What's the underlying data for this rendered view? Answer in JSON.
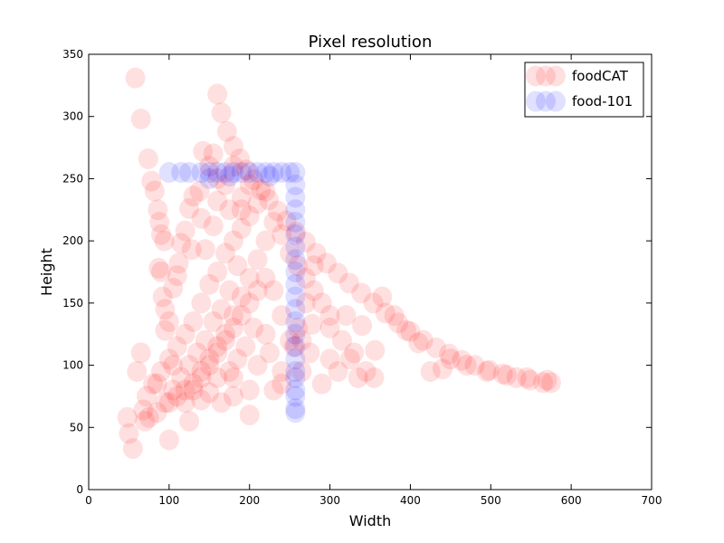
{
  "chart_data": {
    "type": "scatter",
    "title": "Pixel resolution",
    "xlabel": "Width",
    "ylabel": "Height",
    "xlim": [
      0,
      700
    ],
    "ylim": [
      0,
      350
    ],
    "xticks": [
      0,
      100,
      200,
      300,
      400,
      500,
      600,
      700
    ],
    "yticks": [
      0,
      50,
      100,
      150,
      200,
      250,
      300,
      350
    ],
    "grid": false,
    "legend_position": "top-right",
    "series": [
      {
        "name": "foodCAT",
        "color": "#ff0000",
        "points": [
          [
            58,
            331
          ],
          [
            65,
            298
          ],
          [
            74,
            266
          ],
          [
            78,
            248
          ],
          [
            82,
            240
          ],
          [
            86,
            225
          ],
          [
            88,
            215
          ],
          [
            90,
            205
          ],
          [
            94,
            200
          ],
          [
            90,
            175
          ],
          [
            92,
            155
          ],
          [
            95,
            145
          ],
          [
            100,
            135
          ],
          [
            105,
            162
          ],
          [
            110,
            172
          ],
          [
            112,
            182
          ],
          [
            115,
            198
          ],
          [
            120,
            208
          ],
          [
            125,
            226
          ],
          [
            130,
            236
          ],
          [
            138,
            240
          ],
          [
            140,
            218
          ],
          [
            128,
            193
          ],
          [
            145,
            193
          ],
          [
            155,
            212
          ],
          [
            160,
            232
          ],
          [
            160,
            318
          ],
          [
            165,
            303
          ],
          [
            172,
            288
          ],
          [
            180,
            276
          ],
          [
            188,
            266
          ],
          [
            196,
            257
          ],
          [
            205,
            249
          ],
          [
            214,
            241
          ],
          [
            224,
            233
          ],
          [
            235,
            224
          ],
          [
            246,
            216
          ],
          [
            258,
            207
          ],
          [
            270,
            199
          ],
          [
            283,
            190
          ],
          [
            296,
            182
          ],
          [
            310,
            174
          ],
          [
            324,
            166
          ],
          [
            339,
            158
          ],
          [
            354,
            150
          ],
          [
            369,
            142
          ],
          [
            385,
            134
          ],
          [
            400,
            127
          ],
          [
            416,
            120
          ],
          [
            432,
            114
          ],
          [
            448,
            109
          ],
          [
            464,
            104
          ],
          [
            480,
            100
          ],
          [
            498,
            96
          ],
          [
            515,
            93
          ],
          [
            532,
            90
          ],
          [
            549,
            88
          ],
          [
            565,
            86
          ],
          [
            575,
            86
          ],
          [
            100,
            70
          ],
          [
            110,
            75
          ],
          [
            120,
            80
          ],
          [
            130,
            85
          ],
          [
            140,
            95
          ],
          [
            150,
            105
          ],
          [
            160,
            115
          ],
          [
            170,
            125
          ],
          [
            180,
            140
          ],
          [
            190,
            155
          ],
          [
            200,
            170
          ],
          [
            210,
            185
          ],
          [
            220,
            200
          ],
          [
            230,
            215
          ],
          [
            185,
            180
          ],
          [
            175,
            160
          ],
          [
            165,
            145
          ],
          [
            155,
            135
          ],
          [
            145,
            120
          ],
          [
            135,
            110
          ],
          [
            125,
            100
          ],
          [
            115,
            90
          ],
          [
            105,
            80
          ],
          [
            95,
            70
          ],
          [
            85,
            62
          ],
          [
            75,
            58
          ],
          [
            70,
            55
          ],
          [
            68,
            64
          ],
          [
            72,
            75
          ],
          [
            80,
            85
          ],
          [
            90,
            95
          ],
          [
            100,
            105
          ],
          [
            110,
            115
          ],
          [
            120,
            125
          ],
          [
            130,
            135
          ],
          [
            140,
            150
          ],
          [
            150,
            165
          ],
          [
            160,
            175
          ],
          [
            170,
            190
          ],
          [
            180,
            200
          ],
          [
            190,
            210
          ],
          [
            200,
            220
          ],
          [
            210,
            230
          ],
          [
            220,
            240
          ],
          [
            240,
            205
          ],
          [
            250,
            190
          ],
          [
            260,
            180
          ],
          [
            270,
            170
          ],
          [
            280,
            160
          ],
          [
            290,
            150
          ],
          [
            300,
            140
          ],
          [
            280,
            180
          ],
          [
            270,
            150
          ],
          [
            260,
            130
          ],
          [
            250,
            120
          ],
          [
            240,
            140
          ],
          [
            230,
            160
          ],
          [
            220,
            170
          ],
          [
            210,
            160
          ],
          [
            200,
            150
          ],
          [
            190,
            140
          ],
          [
            180,
            130
          ],
          [
            170,
            120
          ],
          [
            160,
            110
          ],
          [
            150,
            100
          ],
          [
            140,
            90
          ],
          [
            130,
            80
          ],
          [
            120,
            70
          ],
          [
            125,
            55
          ],
          [
            165,
            70
          ],
          [
            180,
            90
          ],
          [
            200,
            80
          ],
          [
            210,
            100
          ],
          [
            225,
            110
          ],
          [
            240,
            95
          ],
          [
            255,
            115
          ],
          [
            265,
            120
          ],
          [
            278,
            133
          ],
          [
            300,
            130
          ],
          [
            320,
            140
          ],
          [
            340,
            132
          ],
          [
            356,
            112
          ],
          [
            200,
            60
          ],
          [
            180,
            75
          ],
          [
            50,
            45
          ],
          [
            55,
            33
          ],
          [
            48,
            58
          ],
          [
            60,
            95
          ],
          [
            65,
            110
          ],
          [
            85,
            85
          ],
          [
            100,
            40
          ],
          [
            105,
            100
          ],
          [
            95,
            128
          ],
          [
            87,
            178
          ],
          [
            365,
            155
          ],
          [
            380,
            140
          ],
          [
            395,
            128
          ],
          [
            410,
            118
          ],
          [
            425,
            95
          ],
          [
            440,
            97
          ],
          [
            450,
            105
          ],
          [
            470,
            100
          ],
          [
            495,
            95
          ],
          [
            520,
            92
          ],
          [
            545,
            90
          ],
          [
            570,
            88
          ],
          [
            330,
            110
          ],
          [
            345,
            95
          ],
          [
            355,
            90
          ],
          [
            290,
            85
          ],
          [
            265,
            95
          ],
          [
            240,
            85
          ],
          [
            230,
            80
          ],
          [
            220,
            125
          ],
          [
            205,
            130
          ],
          [
            195,
            115
          ],
          [
            185,
            105
          ],
          [
            175,
            95
          ],
          [
            160,
            90
          ],
          [
            150,
            78
          ],
          [
            140,
            72
          ],
          [
            300,
            105
          ],
          [
            310,
            95
          ],
          [
            315,
            120
          ],
          [
            325,
            105
          ],
          [
            335,
            90
          ],
          [
            275,
            110
          ],
          [
            160,
            250
          ],
          [
            170,
            245
          ],
          [
            180,
            260
          ],
          [
            190,
            235
          ],
          [
            200,
            245
          ],
          [
            150,
            260
          ],
          [
            155,
            270
          ],
          [
            142,
            272
          ],
          [
            175,
            225
          ],
          [
            190,
            225
          ]
        ]
      },
      {
        "name": "food-101",
        "color": "#0000ff",
        "points": [
          [
            100,
            255
          ],
          [
            115,
            255
          ],
          [
            125,
            255
          ],
          [
            140,
            255
          ],
          [
            150,
            255
          ],
          [
            160,
            255
          ],
          [
            170,
            255
          ],
          [
            180,
            255
          ],
          [
            190,
            255
          ],
          [
            200,
            255
          ],
          [
            210,
            255
          ],
          [
            220,
            255
          ],
          [
            230,
            255
          ],
          [
            240,
            255
          ],
          [
            250,
            255
          ],
          [
            257,
            255
          ],
          [
            257,
            245
          ],
          [
            257,
            235
          ],
          [
            257,
            225
          ],
          [
            257,
            215
          ],
          [
            257,
            205
          ],
          [
            257,
            195
          ],
          [
            257,
            185
          ],
          [
            257,
            175
          ],
          [
            257,
            165
          ],
          [
            257,
            155
          ],
          [
            257,
            145
          ],
          [
            257,
            135
          ],
          [
            257,
            125
          ],
          [
            257,
            115
          ],
          [
            257,
            105
          ],
          [
            257,
            95
          ],
          [
            257,
            90
          ],
          [
            257,
            80
          ],
          [
            257,
            75
          ],
          [
            257,
            65
          ],
          [
            257,
            62
          ],
          [
            150,
            250
          ],
          [
            175,
            252
          ],
          [
            225,
            252
          ]
        ]
      }
    ]
  }
}
